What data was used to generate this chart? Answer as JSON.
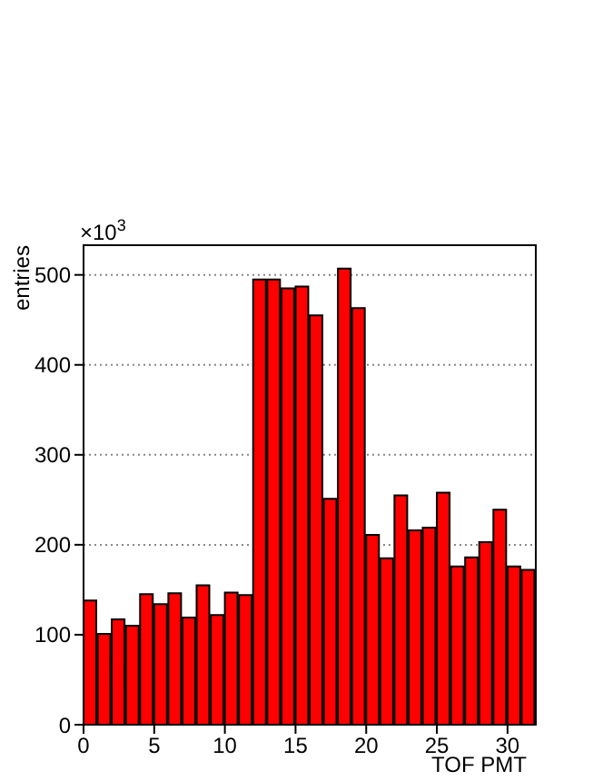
{
  "chart_data": {
    "type": "histogram",
    "xlabel": "TOF PMT",
    "ylabel": "entries",
    "annotations": [
      "×10$^{3}$"
    ],
    "color": "#ff0000",
    "bins": [
      0,
      1,
      2,
      3,
      4,
      5,
      6,
      7,
      8,
      9,
      10,
      11,
      12,
      13,
      14,
      15,
      16,
      17,
      18,
      19,
      20,
      21,
      22,
      23,
      24,
      25,
      26,
      27,
      28,
      29,
      30,
      31,
      32
    ],
    "values": [
      138,
      101,
      117,
      110,
      145,
      134,
      146,
      119,
      155,
      122,
      147,
      144,
      495,
      495,
      485,
      487,
      455,
      251,
      507,
      463,
      211,
      185,
      255,
      216,
      219,
      258,
      176,
      186,
      203,
      239,
      176,
      172
    ],
    "xlim": [
      0,
      32
    ],
    "xticks": [
      0,
      5,
      10,
      15,
      20,
      25,
      30
    ],
    "ylim": [
      0,
      533
    ],
    "yticks": [
      0,
      100,
      200,
      300,
      400,
      500
    ],
    "grid": "y"
  }
}
